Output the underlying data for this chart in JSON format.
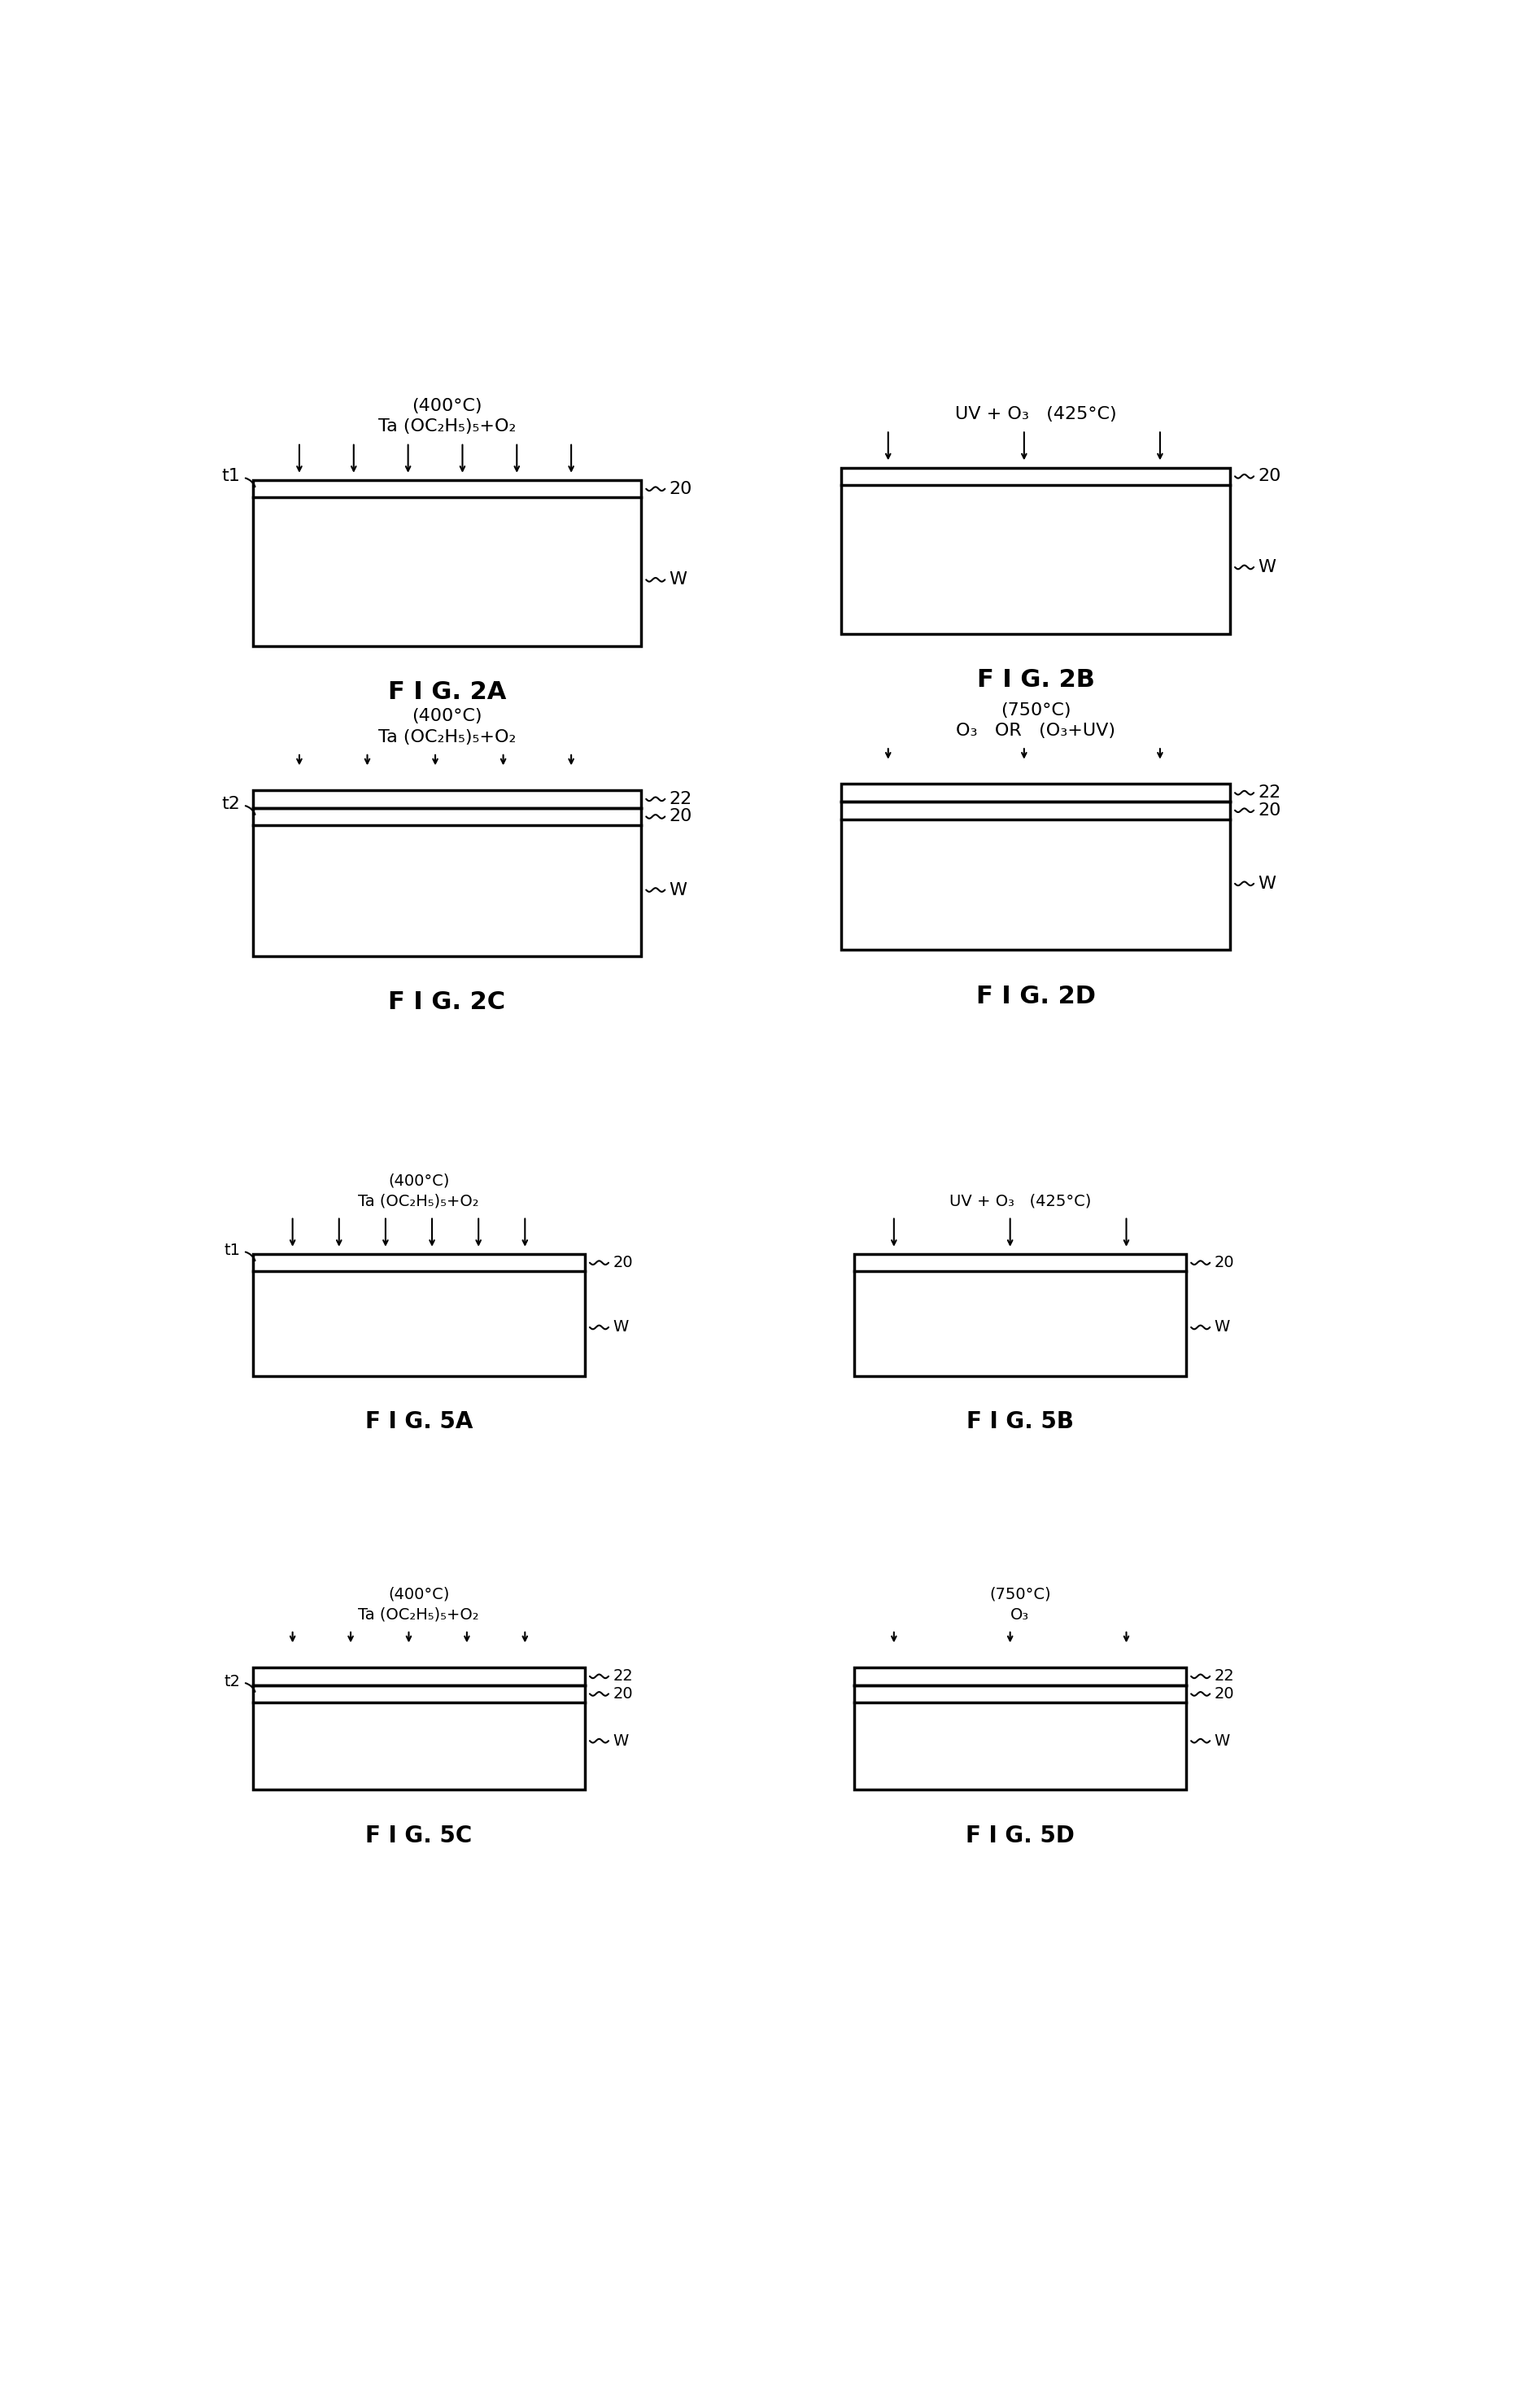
{
  "bg_color": "#ffffff",
  "figures": [
    {
      "id": "2A",
      "col": 0,
      "row": 0,
      "title_line1": "(400°C)",
      "title_line2": "Ta (OC₂H₅)₅+O₂",
      "num_layers": 1,
      "num_arrows": 6,
      "left_label": "t1",
      "right_labels": [
        "20",
        "W"
      ]
    },
    {
      "id": "2B",
      "col": 1,
      "row": 0,
      "title_line1": "UV + O₃   (425°C)",
      "title_line2": null,
      "num_layers": 1,
      "num_arrows": 3,
      "left_label": null,
      "right_labels": [
        "20",
        "W"
      ]
    },
    {
      "id": "2C",
      "col": 0,
      "row": 1,
      "title_line1": "(400°C)",
      "title_line2": "Ta (OC₂H₅)₅+O₂",
      "num_layers": 2,
      "num_arrows": 5,
      "left_label": "t2",
      "right_labels": [
        "22",
        "20",
        "W"
      ]
    },
    {
      "id": "2D",
      "col": 1,
      "row": 1,
      "title_line1": "(750°C)",
      "title_line2": "O₃   OR   (O₃+UV)",
      "num_layers": 2,
      "num_arrows": 3,
      "left_label": null,
      "right_labels": [
        "22",
        "20",
        "W"
      ]
    },
    {
      "id": "5A",
      "col": 0,
      "row": 2,
      "title_line1": "(400°C)",
      "title_line2": "Ta (OC₂H₅)₅+O₂",
      "num_layers": 1,
      "num_arrows": 6,
      "left_label": "t1",
      "right_labels": [
        "20",
        "W"
      ]
    },
    {
      "id": "5B",
      "col": 1,
      "row": 2,
      "title_line1": "UV + O₃   (425°C)",
      "title_line2": null,
      "num_layers": 1,
      "num_arrows": 3,
      "left_label": null,
      "right_labels": [
        "20",
        "W"
      ]
    },
    {
      "id": "5C",
      "col": 0,
      "row": 3,
      "title_line1": "(400°C)",
      "title_line2": "Ta (OC₂H₅)₅+O₂",
      "num_layers": 2,
      "num_arrows": 5,
      "left_label": "t2",
      "right_labels": [
        "22",
        "20",
        "W"
      ]
    },
    {
      "id": "5D",
      "col": 1,
      "row": 3,
      "title_line1": "(750°C)",
      "title_line2": "O₃",
      "num_layers": 2,
      "num_arrows": 3,
      "left_label": null,
      "right_labels": [
        "22",
        "20",
        "W"
      ]
    }
  ]
}
